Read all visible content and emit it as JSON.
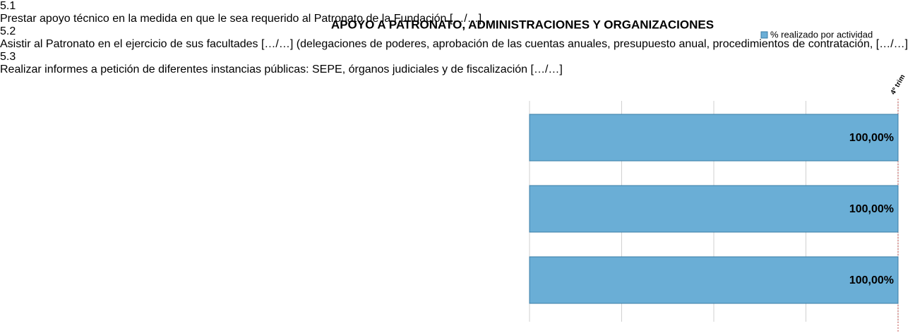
{
  "chart_data": {
    "type": "hbar",
    "title": "APOYO A PATRONATO,  ADMINISTRACIONES Y ORGANIZACIONES",
    "codes": [
      "5.1",
      "5.2",
      "5.3"
    ],
    "categories": [
      "Prestar apoyo técnico en la medida en que le sea requerido al Patronato de la Fundación […/…]",
      "Asistir al Patronato en el ejercicio de sus facultades […/…] (delegaciones de poderes, aprobación de las cuentas anuales, presupuesto anual, procedimientos de contratación, […/…]",
      "Realizar informes a petición de diferentes instancias públicas: SEPE, órganos judiciales y de fiscalización […/…]"
    ],
    "series": [
      {
        "name": "% realizado por actividad",
        "color": "#6aaed6",
        "values": [
          100,
          100,
          100
        ],
        "value_labels": [
          "100,00%",
          "100,00%",
          "100,00%"
        ]
      }
    ],
    "xlim": [
      0,
      100
    ],
    "xticks": [
      0,
      25,
      50,
      75,
      100
    ],
    "grid": true,
    "annotations": [
      {
        "label": "4º trim",
        "value": 100
      }
    ]
  }
}
